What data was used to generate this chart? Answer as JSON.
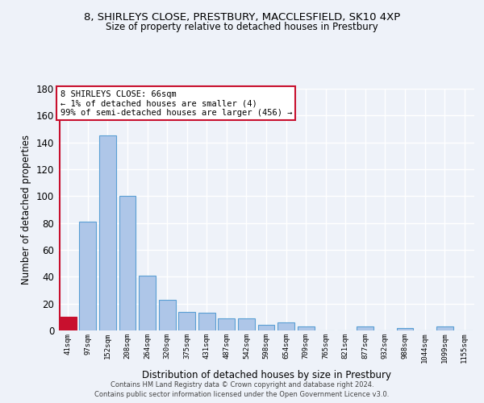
{
  "title_line1": "8, SHIRLEYS CLOSE, PRESTBURY, MACCLESFIELD, SK10 4XP",
  "title_line2": "Size of property relative to detached houses in Prestbury",
  "xlabel": "Distribution of detached houses by size in Prestbury",
  "ylabel": "Number of detached properties",
  "bar_color": "#aec6e8",
  "bar_edge_color": "#5a9fd4",
  "highlight_bar_color": "#c8102e",
  "highlight_bar_edge_color": "#c8102e",
  "annotation_box_color": "#c8102e",
  "annotation_text": "8 SHIRLEYS CLOSE: 66sqm\n← 1% of detached houses are smaller (4)\n99% of semi-detached houses are larger (456) →",
  "categories": [
    "41sqm",
    "97sqm",
    "152sqm",
    "208sqm",
    "264sqm",
    "320sqm",
    "375sqm",
    "431sqm",
    "487sqm",
    "542sqm",
    "598sqm",
    "654sqm",
    "709sqm",
    "765sqm",
    "821sqm",
    "877sqm",
    "932sqm",
    "988sqm",
    "1044sqm",
    "1099sqm",
    "1155sqm"
  ],
  "values": [
    10,
    81,
    145,
    100,
    41,
    23,
    14,
    13,
    9,
    9,
    4,
    6,
    3,
    0,
    0,
    3,
    0,
    2,
    0,
    3,
    0
  ],
  "highlight_index": 0,
  "ylim": [
    0,
    180
  ],
  "yticks": [
    0,
    20,
    40,
    60,
    80,
    100,
    120,
    140,
    160,
    180
  ],
  "background_color": "#eef2f9",
  "grid_color": "#ffffff",
  "footer_line1": "Contains HM Land Registry data © Crown copyright and database right 2024.",
  "footer_line2": "Contains public sector information licensed under the Open Government Licence v3.0."
}
